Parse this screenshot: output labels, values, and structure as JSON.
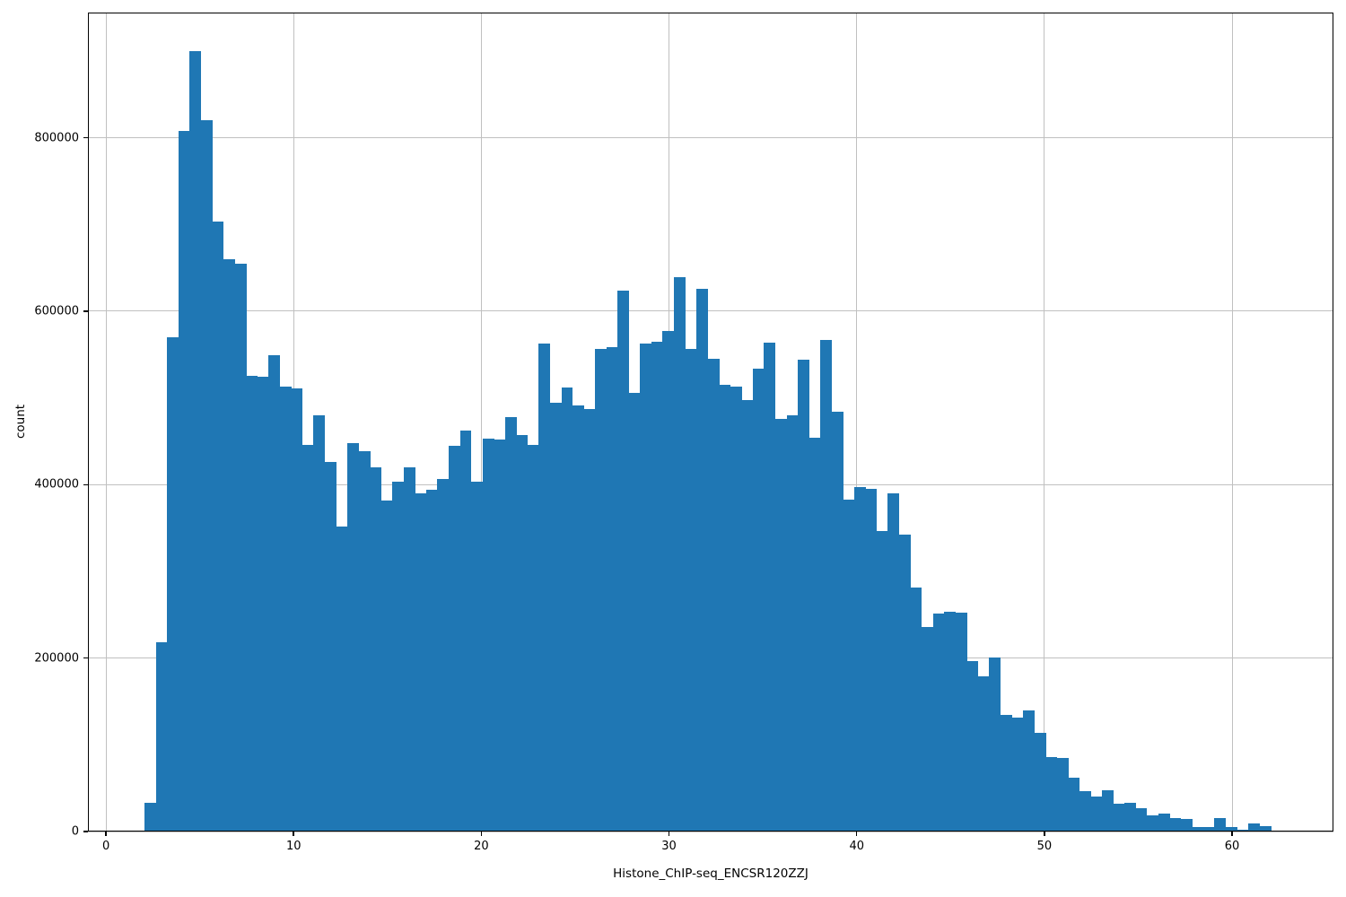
{
  "chart_data": {
    "type": "histogram",
    "title": "",
    "xlabel": "Histone_ChIP-seq_ENCSR120ZZJ",
    "ylabel": "count",
    "bar_color": "#1f77b4",
    "grid_color": "#c0c0c0",
    "grid": true,
    "legend_position": "none",
    "bin_start": 2.06,
    "bin_width": 0.6,
    "counts": [
      33000,
      218000,
      570000,
      808000,
      900000,
      820000,
      703000,
      660000,
      655000,
      525000,
      524000,
      549000,
      513000,
      511000,
      446000,
      480000,
      426000,
      352000,
      448000,
      439000,
      420000,
      382000,
      403000,
      420000,
      390000,
      394000,
      406000,
      445000,
      462000,
      403000,
      453000,
      452000,
      478000,
      457000,
      446000,
      563000,
      494000,
      512000,
      491000,
      487000,
      556000,
      559000,
      624000,
      506000,
      563000,
      565000,
      577000,
      639000,
      556000,
      626000,
      545000,
      515000,
      513000,
      498000,
      534000,
      564000,
      476000,
      480000,
      544000,
      454000,
      567000,
      484000,
      383000,
      397000,
      395000,
      347000,
      390000,
      342000,
      281000,
      236000,
      251000,
      253000,
      252000,
      197000,
      179000,
      201000,
      134000,
      131000,
      140000,
      114000,
      86000,
      85000,
      62000,
      47000,
      40000,
      48000,
      32000,
      33000,
      27000,
      19000,
      21000,
      16000,
      14000,
      5000,
      5000,
      16000,
      5000,
      2000,
      9000,
      6000
    ],
    "xlim": [
      -0.96,
      65.4
    ],
    "ylim": [
      0,
      944300
    ],
    "xticks": [
      0,
      10,
      20,
      30,
      40,
      50,
      60
    ],
    "xtick_labels": [
      "0",
      "10",
      "20",
      "30",
      "40",
      "50",
      "60"
    ],
    "yticks": [
      0,
      200000,
      400000,
      600000,
      800000
    ],
    "ytick_labels": [
      "0",
      "200000",
      "400000",
      "600000",
      "800000"
    ]
  }
}
